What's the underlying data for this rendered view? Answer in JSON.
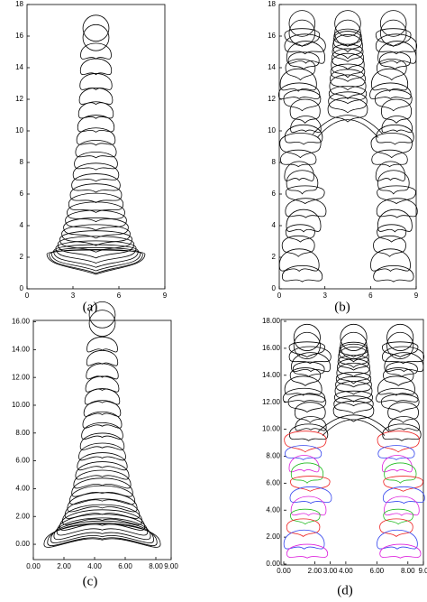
{
  "panels": [
    {
      "label": "(a)",
      "xlim": [
        0,
        9
      ],
      "ylim": [
        0,
        18
      ],
      "xticks": [
        0,
        3,
        6,
        9
      ],
      "yticks": [
        0,
        2,
        4,
        6,
        8,
        10,
        12,
        14,
        16,
        18
      ]
    },
    {
      "label": "(b)",
      "xlim": [
        0,
        9
      ],
      "ylim": [
        0,
        18
      ],
      "xticks": [
        0,
        3,
        6,
        9
      ],
      "yticks": [
        0,
        2,
        4,
        6,
        8,
        10,
        12,
        14,
        16,
        18
      ]
    },
    {
      "label": "(c)",
      "xlim": [
        0,
        9
      ],
      "ylim": [
        -1.1,
        16.1
      ],
      "xticks": [
        {
          "value": 0,
          "label": "0.00"
        },
        {
          "value": 2,
          "label": "2.00"
        },
        {
          "value": 4,
          "label": "4.00"
        },
        {
          "value": 6,
          "label": "6.00"
        },
        {
          "value": 8,
          "label": "8.00"
        },
        {
          "value": 9,
          "label": "9.00"
        }
      ],
      "yticks": [
        {
          "value": 0,
          "label": "0.00"
        },
        {
          "value": 2,
          "label": "2.00"
        },
        {
          "value": 4,
          "label": "4.00"
        },
        {
          "value": 6,
          "label": "6.00"
        },
        {
          "value": 8,
          "label": "8.00"
        },
        {
          "value": 10,
          "label": "10.00"
        },
        {
          "value": 12,
          "label": "12.00"
        },
        {
          "value": 14,
          "label": "14.00"
        },
        {
          "value": 16,
          "label": "16.00"
        }
      ]
    },
    {
      "label": "(d)",
      "xlim": [
        0,
        9
      ],
      "ylim": [
        0,
        18
      ],
      "xticks": [
        {
          "value": 0,
          "label": "0.00"
        },
        {
          "value": 2,
          "label": "2.00"
        },
        {
          "value": 3,
          "label": "3.00"
        },
        {
          "value": 4,
          "label": "4.00"
        },
        {
          "value": 6,
          "label": "6.00"
        },
        {
          "value": 8,
          "label": "8.00"
        },
        {
          "value": 9,
          "label": "9.0"
        }
      ],
      "yticks": [
        {
          "value": 0,
          "label": "0.00"
        },
        {
          "value": 2,
          "label": "2.00"
        },
        {
          "value": 4,
          "label": "4.00"
        },
        {
          "value": 6,
          "label": "6.00"
        },
        {
          "value": 8,
          "label": "8.00"
        },
        {
          "value": 10,
          "label": "10.00"
        },
        {
          "value": 12,
          "label": "12.00"
        },
        {
          "value": 14,
          "label": "14.00"
        },
        {
          "value": 16,
          "label": "16.00"
        },
        {
          "value": 18,
          "label": "18.00"
        }
      ]
    }
  ]
}
